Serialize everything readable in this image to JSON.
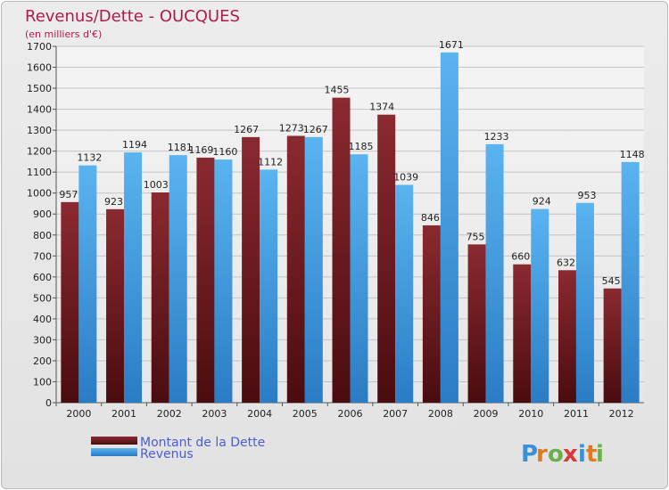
{
  "chart_data": {
    "type": "bar",
    "title": "Revenus/Dette - OUCQUES",
    "subtitle": "(en milliers d'€)",
    "categories": [
      "2000",
      "2001",
      "2002",
      "2003",
      "2004",
      "2005",
      "2006",
      "2007",
      "2008",
      "2009",
      "2010",
      "2011",
      "2012"
    ],
    "series": [
      {
        "name": "Montant de la Dette",
        "color": "#7a1e24",
        "values": [
          957,
          923,
          1003,
          1169,
          1267,
          1273,
          1455,
          1374,
          846,
          755,
          660,
          632,
          545
        ],
        "labels": [
          "957",
          "923",
          "1003",
          "1169",
          "1267",
          "1273",
          "1455",
          "1374",
          "846",
          "755",
          "660",
          "632",
          "545"
        ]
      },
      {
        "name": "Revenus",
        "color": "#3f9de0",
        "values": [
          1132,
          1194,
          1181,
          1160,
          1112,
          1267,
          1185,
          1039,
          1671,
          1233,
          924,
          953,
          1148
        ],
        "labels": [
          "1132",
          "1194",
          "1181",
          "1160",
          "1112",
          "1267",
          "1185",
          "1039",
          "1671",
          "1233",
          "924",
          "953",
          "1148"
        ]
      }
    ],
    "ylim": [
      0,
      1700
    ],
    "yticks": [
      0,
      100,
      200,
      300,
      400,
      500,
      600,
      700,
      800,
      900,
      1000,
      1100,
      1200,
      1300,
      1400,
      1500,
      1600,
      1700
    ],
    "grid": true,
    "legend": "bottom-left"
  },
  "brand": {
    "letters": [
      "P",
      "r",
      "o",
      "x",
      "i",
      "t",
      "i"
    ],
    "colors": [
      "#3a8fd6",
      "#e07a1c",
      "#6ab04c",
      "#d63a3a",
      "#3a8fd6",
      "#e07a1c",
      "#6ab04c"
    ]
  }
}
